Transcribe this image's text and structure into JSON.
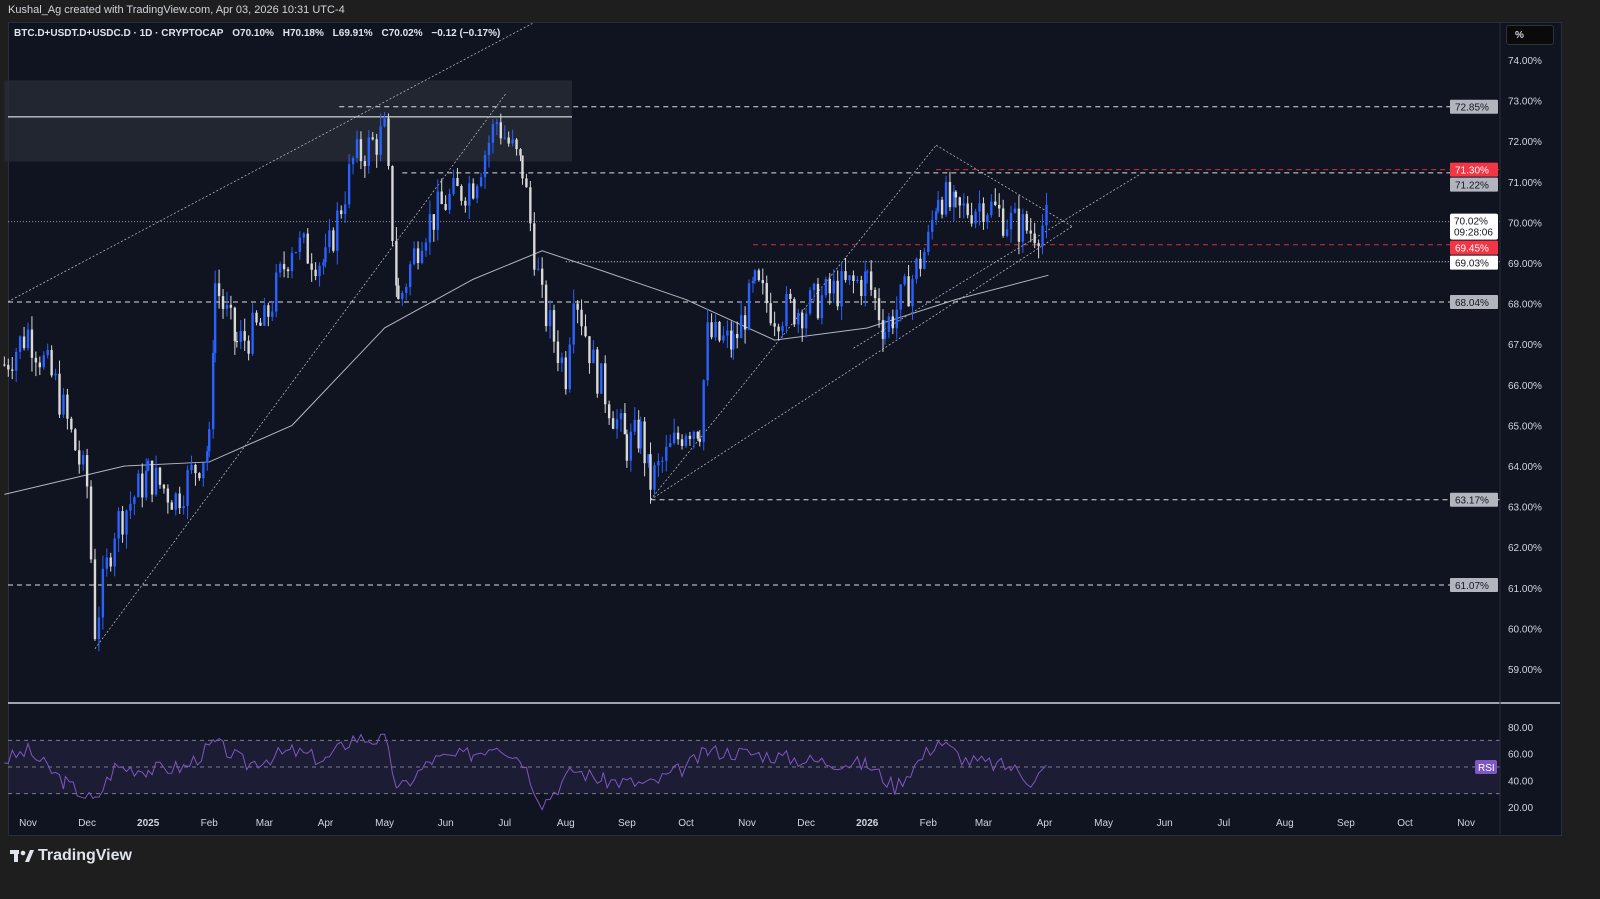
{
  "header": {
    "attribution": "Kushal_Ag created with TradingView.com, Apr 03, 2026 10:31 UTC-4",
    "symbol": "BTC.D+USDT.D+USDC.D · 1D · CRYPTOCAP",
    "open": "O70.10%",
    "high": "H70.18%",
    "low": "L69.91%",
    "close": "C70.02%",
    "change": "−0.12 (−0.17%)"
  },
  "price_scale": {
    "unit_button": "%",
    "ticks": [
      "74.00%",
      "73.00%",
      "72.00%",
      "71.00%",
      "70.00%",
      "69.00%",
      "68.00%",
      "67.00%",
      "66.00%",
      "65.00%",
      "64.00%",
      "63.00%",
      "62.00%",
      "61.00%",
      "60.00%",
      "59.00%"
    ],
    "tick_values": [
      74,
      73,
      72,
      71,
      70,
      69,
      68,
      67,
      66,
      65,
      64,
      63,
      62,
      61,
      60,
      59
    ],
    "current_price_label": "70.02%",
    "countdown": "09:28:06"
  },
  "colors": {
    "background": "#0f1420",
    "up": "#2962ff",
    "down": "#d9d9d9",
    "red_level": "#f23645",
    "rsi": "#7e57c2"
  },
  "levels": [
    {
      "price": 72.85,
      "label": "72.85%",
      "style": "dashed",
      "color": "#ffffff",
      "badge": "gray",
      "from": "2025-04-08"
    },
    {
      "price": 71.3,
      "label": "71.30%",
      "style": "dashed",
      "color": "#f23645",
      "badge": "red",
      "from": "2026-02-05"
    },
    {
      "price": 71.22,
      "label": "71.22%",
      "style": "dashed",
      "color": "#ffffff",
      "badge": "gray",
      "from": "2025-05-10"
    },
    {
      "price": 69.45,
      "label": "69.45%",
      "style": "dashed",
      "color": "#f23645",
      "badge": "red",
      "from": "2025-11-04"
    },
    {
      "price": 69.03,
      "label": "69.03%",
      "style": "dotted",
      "color": "#ffffff",
      "badge": "white",
      "from": "2025-08-01"
    },
    {
      "price": 68.04,
      "label": "68.04%",
      "style": "dashed",
      "color": "#ffffff",
      "badge": "gray",
      "from": "2024-10-20"
    },
    {
      "price": 63.17,
      "label": "63.17%",
      "style": "dashed",
      "color": "#ffffff",
      "badge": "gray",
      "from": "2025-09-13"
    },
    {
      "price": 61.07,
      "label": "61.07%",
      "style": "dashed",
      "color": "#ffffff",
      "badge": "gray",
      "from": "2024-10-20"
    }
  ],
  "current_price": 70.02,
  "zone": {
    "from": "2024-10-20",
    "to": "2025-07-25",
    "top": 73.5,
    "bottom": 71.5,
    "mid": 72.6
  },
  "trendlines": [
    [
      [
        "2024-10-20",
        68.0
      ],
      [
        "2025-07-15",
        74.9
      ]
    ],
    [
      [
        "2024-12-05",
        59.5
      ],
      [
        "2025-07-02",
        73.2
      ]
    ],
    [
      [
        "2025-09-13",
        63.17
      ],
      [
        "2026-04-15",
        69.9
      ]
    ],
    [
      [
        "2025-09-13",
        63.17
      ],
      [
        "2026-02-05",
        71.9
      ]
    ],
    [
      [
        "2025-12-25",
        66.9
      ],
      [
        "2026-05-20",
        71.2
      ]
    ],
    [
      [
        "2026-02-05",
        71.9
      ],
      [
        "2026-04-15",
        69.9
      ]
    ]
  ],
  "chart_data": {
    "type": "candlestick",
    "title": "BTC.D+USDT.D+USDC.D · 1D · CRYPTOCAP",
    "yunit": "%",
    "ylim": [
      58.5,
      74.5
    ],
    "x_ticks": [
      "Nov",
      "Dec",
      "2025",
      "Feb",
      "Mar",
      "Apr",
      "May",
      "Jun",
      "Jul",
      "Aug",
      "Sep",
      "Oct",
      "Nov",
      "Dec",
      "2026",
      "Feb",
      "Mar",
      "Apr",
      "May",
      "Jun",
      "Jul",
      "Aug",
      "Sep",
      "Oct",
      "Nov"
    ],
    "x_tick_dates": [
      "2024-11-01",
      "2024-12-01",
      "2025-01-01",
      "2025-02-01",
      "2025-03-01",
      "2025-04-01",
      "2025-05-01",
      "2025-06-01",
      "2025-07-01",
      "2025-08-01",
      "2025-09-01",
      "2025-10-01",
      "2025-11-01",
      "2025-12-01",
      "2026-01-01",
      "2026-02-01",
      "2026-03-01",
      "2026-04-01",
      "2026-05-01",
      "2026-06-01",
      "2026-07-01",
      "2026-08-01",
      "2026-09-01",
      "2026-10-01",
      "2026-11-01"
    ],
    "close_series": [
      [
        "2024-10-20",
        66.5
      ],
      [
        "2024-11-01",
        67.3
      ],
      [
        "2024-11-15",
        66.0
      ],
      [
        "2024-12-01",
        63.5
      ],
      [
        "2024-12-05",
        60.0
      ],
      [
        "2024-12-15",
        62.5
      ],
      [
        "2025-01-01",
        63.8
      ],
      [
        "2025-01-15",
        63.2
      ],
      [
        "2025-02-01",
        64.5
      ],
      [
        "2025-02-04",
        68.5
      ],
      [
        "2025-02-15",
        67.0
      ],
      [
        "2025-03-01",
        67.5
      ],
      [
        "2025-03-15",
        69.5
      ],
      [
        "2025-04-01",
        69.0
      ],
      [
        "2025-04-15",
        71.5
      ],
      [
        "2025-05-01",
        72.2
      ],
      [
        "2025-05-08",
        68.0
      ],
      [
        "2025-05-20",
        69.8
      ],
      [
        "2025-06-01",
        70.5
      ],
      [
        "2025-06-15",
        71.0
      ],
      [
        "2025-06-27",
        72.5
      ],
      [
        "2025-07-10",
        71.3
      ],
      [
        "2025-07-20",
        68.0
      ],
      [
        "2025-08-01",
        66.3
      ],
      [
        "2025-08-05",
        68.5
      ],
      [
        "2025-08-15",
        66.5
      ],
      [
        "2025-09-01",
        64.5
      ],
      [
        "2025-09-08",
        64.8
      ],
      [
        "2025-09-13",
        63.6
      ],
      [
        "2025-10-01",
        65.0
      ],
      [
        "2025-10-08",
        65.0
      ],
      [
        "2025-10-12",
        67.2
      ],
      [
        "2025-10-25",
        67.0
      ],
      [
        "2025-11-05",
        68.4
      ],
      [
        "2025-11-15",
        67.8
      ],
      [
        "2025-12-01",
        67.9
      ],
      [
        "2025-12-15",
        68.3
      ],
      [
        "2026-01-01",
        68.6
      ],
      [
        "2026-01-10",
        67.4
      ],
      [
        "2026-01-20",
        68.2
      ],
      [
        "2026-02-01",
        69.5
      ],
      [
        "2026-02-06",
        70.8
      ],
      [
        "2026-02-15",
        70.2
      ],
      [
        "2026-03-01",
        70.5
      ],
      [
        "2026-03-15",
        70.0
      ],
      [
        "2026-03-25",
        69.8
      ],
      [
        "2026-04-03",
        70.02
      ]
    ],
    "moving_average": [
      [
        "2024-10-20",
        63.3
      ],
      [
        "2024-12-20",
        64.0
      ],
      [
        "2025-02-01",
        64.1
      ],
      [
        "2025-03-15",
        65.0
      ],
      [
        "2025-05-01",
        67.4
      ],
      [
        "2025-06-15",
        68.6
      ],
      [
        "2025-07-20",
        69.3
      ],
      [
        "2025-08-20",
        68.8
      ],
      [
        "2025-10-01",
        68.1
      ],
      [
        "2025-11-15",
        67.1
      ],
      [
        "2026-01-01",
        67.4
      ],
      [
        "2026-02-15",
        68.1
      ],
      [
        "2026-04-03",
        68.7
      ]
    ],
    "rsi": {
      "label": "RSI",
      "ticks": [
        "80.00",
        "60.00",
        "40.00",
        "20.00"
      ],
      "tick_values": [
        80,
        60,
        40,
        20
      ],
      "band": [
        30,
        70
      ],
      "values": [
        [
          "2024-10-20",
          55
        ],
        [
          "2024-11-01",
          62
        ],
        [
          "2024-11-20",
          38
        ],
        [
          "2024-12-05",
          24
        ],
        [
          "2024-12-15",
          50
        ],
        [
          "2025-01-01",
          48
        ],
        [
          "2025-01-20",
          50
        ],
        [
          "2025-02-04",
          68
        ],
        [
          "2025-02-20",
          52
        ],
        [
          "2025-03-15",
          62
        ],
        [
          "2025-04-01",
          55
        ],
        [
          "2025-04-15",
          72
        ],
        [
          "2025-05-01",
          70
        ],
        [
          "2025-05-08",
          32
        ],
        [
          "2025-05-25",
          55
        ],
        [
          "2025-06-15",
          60
        ],
        [
          "2025-06-27",
          68
        ],
        [
          "2025-07-10",
          55
        ],
        [
          "2025-07-20",
          22
        ],
        [
          "2025-08-05",
          48
        ],
        [
          "2025-08-20",
          40
        ],
        [
          "2025-09-13",
          37
        ],
        [
          "2025-10-01",
          50
        ],
        [
          "2025-10-12",
          62
        ],
        [
          "2025-11-05",
          60
        ],
        [
          "2025-12-01",
          55
        ],
        [
          "2026-01-01",
          52
        ],
        [
          "2026-01-15",
          35
        ],
        [
          "2026-02-06",
          70
        ],
        [
          "2026-02-20",
          55
        ],
        [
          "2026-03-15",
          50
        ],
        [
          "2026-03-25",
          40
        ],
        [
          "2026-04-03",
          50
        ]
      ]
    }
  },
  "footer": {
    "brand": "TradingView"
  }
}
